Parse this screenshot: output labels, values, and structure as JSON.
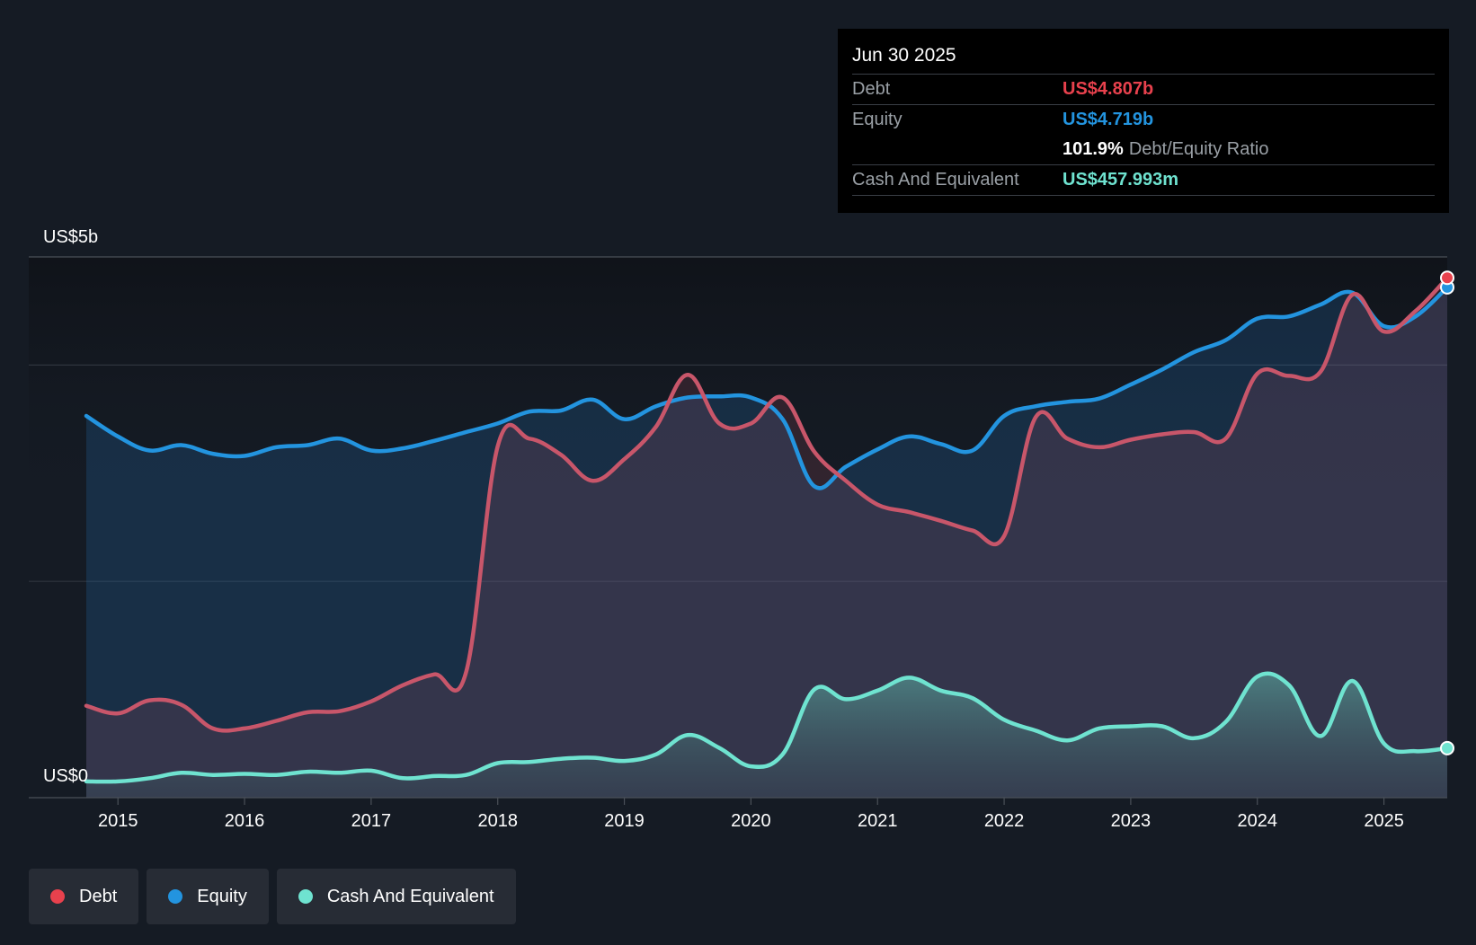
{
  "tooltip": {
    "date": "Jun 30 2025",
    "debt_label": "Debt",
    "debt_value": "US$4.807b",
    "equity_label": "Equity",
    "equity_value": "US$4.719b",
    "ratio_value": "101.9%",
    "ratio_label": "Debt/Equity Ratio",
    "cash_label": "Cash And Equivalent",
    "cash_value": "US$457.993m"
  },
  "legend": {
    "items": [
      {
        "label": "Debt",
        "color": "#e8414d"
      },
      {
        "label": "Equity",
        "color": "#2394df"
      },
      {
        "label": "Cash And Equivalent",
        "color": "#6fe3d0"
      }
    ]
  },
  "colors": {
    "debt": "#e8414d",
    "debt_muted": "#c8566a",
    "equity": "#2394df",
    "cash": "#6fe3d0"
  },
  "chart_data": {
    "type": "area",
    "title": "",
    "xlabel": "",
    "ylabel": "",
    "y_top_label": "US$5b",
    "y_bottom_label": "US$0",
    "ylim": [
      0,
      5
    ],
    "xlim": [
      2014.75,
      2025.5
    ],
    "x_ticks": [
      2015,
      2016,
      2017,
      2018,
      2019,
      2020,
      2021,
      2022,
      2023,
      2024,
      2025
    ],
    "x_tick_labels": [
      "2015",
      "2016",
      "2017",
      "2018",
      "2019",
      "2020",
      "2021",
      "2022",
      "2023",
      "2024",
      "2025"
    ],
    "gridlines_y": [
      2,
      4,
      5
    ],
    "series": [
      {
        "name": "Debt",
        "unit": "US$b",
        "points": [
          [
            2014.75,
            0.85
          ],
          [
            2015.0,
            0.78
          ],
          [
            2015.25,
            0.9
          ],
          [
            2015.5,
            0.86
          ],
          [
            2015.75,
            0.64
          ],
          [
            2016.0,
            0.64
          ],
          [
            2016.25,
            0.71
          ],
          [
            2016.5,
            0.79
          ],
          [
            2016.75,
            0.8
          ],
          [
            2017.0,
            0.89
          ],
          [
            2017.25,
            1.04
          ],
          [
            2017.5,
            1.14
          ],
          [
            2017.75,
            1.16
          ],
          [
            2018.0,
            3.25
          ],
          [
            2018.25,
            3.32
          ],
          [
            2018.5,
            3.17
          ],
          [
            2018.75,
            2.93
          ],
          [
            2019.0,
            3.13
          ],
          [
            2019.25,
            3.43
          ],
          [
            2019.5,
            3.91
          ],
          [
            2019.75,
            3.46
          ],
          [
            2020.0,
            3.46
          ],
          [
            2020.25,
            3.7
          ],
          [
            2020.5,
            3.2
          ],
          [
            2020.75,
            2.93
          ],
          [
            2021.0,
            2.71
          ],
          [
            2021.25,
            2.64
          ],
          [
            2021.5,
            2.56
          ],
          [
            2021.75,
            2.47
          ],
          [
            2022.0,
            2.42
          ],
          [
            2022.25,
            3.52
          ],
          [
            2022.5,
            3.32
          ],
          [
            2022.75,
            3.24
          ],
          [
            2023.0,
            3.31
          ],
          [
            2023.25,
            3.36
          ],
          [
            2023.5,
            3.38
          ],
          [
            2023.75,
            3.32
          ],
          [
            2024.0,
            3.92
          ],
          [
            2024.25,
            3.9
          ],
          [
            2024.5,
            3.94
          ],
          [
            2024.75,
            4.65
          ],
          [
            2025.0,
            4.31
          ],
          [
            2025.25,
            4.5
          ],
          [
            2025.5,
            4.807
          ]
        ]
      },
      {
        "name": "Equity",
        "unit": "US$b",
        "points": [
          [
            2014.75,
            3.53
          ],
          [
            2015.0,
            3.34
          ],
          [
            2015.25,
            3.21
          ],
          [
            2015.5,
            3.26
          ],
          [
            2015.75,
            3.18
          ],
          [
            2016.0,
            3.16
          ],
          [
            2016.25,
            3.24
          ],
          [
            2016.5,
            3.26
          ],
          [
            2016.75,
            3.32
          ],
          [
            2017.0,
            3.21
          ],
          [
            2017.25,
            3.23
          ],
          [
            2017.5,
            3.3
          ],
          [
            2017.75,
            3.38
          ],
          [
            2018.0,
            3.46
          ],
          [
            2018.25,
            3.57
          ],
          [
            2018.5,
            3.58
          ],
          [
            2018.75,
            3.68
          ],
          [
            2019.0,
            3.5
          ],
          [
            2019.25,
            3.62
          ],
          [
            2019.5,
            3.7
          ],
          [
            2019.75,
            3.71
          ],
          [
            2020.0,
            3.7
          ],
          [
            2020.25,
            3.5
          ],
          [
            2020.5,
            2.88
          ],
          [
            2020.75,
            3.06
          ],
          [
            2021.0,
            3.22
          ],
          [
            2021.25,
            3.34
          ],
          [
            2021.5,
            3.27
          ],
          [
            2021.75,
            3.21
          ],
          [
            2022.0,
            3.53
          ],
          [
            2022.25,
            3.62
          ],
          [
            2022.5,
            3.66
          ],
          [
            2022.75,
            3.69
          ],
          [
            2023.0,
            3.82
          ],
          [
            2023.25,
            3.96
          ],
          [
            2023.5,
            4.12
          ],
          [
            2023.75,
            4.23
          ],
          [
            2024.0,
            4.43
          ],
          [
            2024.25,
            4.45
          ],
          [
            2024.5,
            4.56
          ],
          [
            2024.75,
            4.67
          ],
          [
            2025.0,
            4.36
          ],
          [
            2025.25,
            4.45
          ],
          [
            2025.5,
            4.719
          ]
        ]
      },
      {
        "name": "Cash And Equivalent",
        "unit": "US$b",
        "points": [
          [
            2014.75,
            0.15
          ],
          [
            2015.0,
            0.15
          ],
          [
            2015.25,
            0.18
          ],
          [
            2015.5,
            0.23
          ],
          [
            2015.75,
            0.21
          ],
          [
            2016.0,
            0.22
          ],
          [
            2016.25,
            0.21
          ],
          [
            2016.5,
            0.24
          ],
          [
            2016.75,
            0.23
          ],
          [
            2017.0,
            0.25
          ],
          [
            2017.25,
            0.18
          ],
          [
            2017.5,
            0.2
          ],
          [
            2017.75,
            0.21
          ],
          [
            2018.0,
            0.32
          ],
          [
            2018.25,
            0.33
          ],
          [
            2018.5,
            0.36
          ],
          [
            2018.75,
            0.37
          ],
          [
            2019.0,
            0.34
          ],
          [
            2019.25,
            0.4
          ],
          [
            2019.5,
            0.58
          ],
          [
            2019.75,
            0.46
          ],
          [
            2020.0,
            0.29
          ],
          [
            2020.25,
            0.4
          ],
          [
            2020.5,
            1.0
          ],
          [
            2020.75,
            0.91
          ],
          [
            2021.0,
            0.99
          ],
          [
            2021.25,
            1.11
          ],
          [
            2021.5,
            0.99
          ],
          [
            2021.75,
            0.92
          ],
          [
            2022.0,
            0.72
          ],
          [
            2022.25,
            0.62
          ],
          [
            2022.5,
            0.53
          ],
          [
            2022.75,
            0.64
          ],
          [
            2023.0,
            0.66
          ],
          [
            2023.25,
            0.66
          ],
          [
            2023.5,
            0.55
          ],
          [
            2023.75,
            0.7
          ],
          [
            2024.0,
            1.12
          ],
          [
            2024.25,
            1.04
          ],
          [
            2024.5,
            0.57
          ],
          [
            2024.75,
            1.08
          ],
          [
            2025.0,
            0.5
          ],
          [
            2025.25,
            0.43
          ],
          [
            2025.5,
            0.458
          ]
        ]
      }
    ]
  }
}
